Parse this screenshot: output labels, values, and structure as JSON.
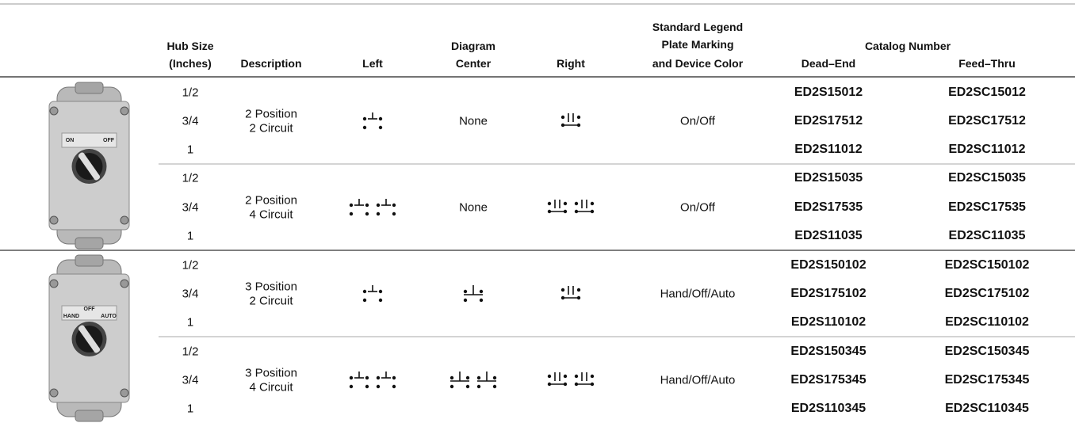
{
  "header": {
    "hub_size": [
      "Hub Size",
      "(Inches)"
    ],
    "description": "Description",
    "diagram": "Diagram",
    "left": "Left",
    "center": "Center",
    "right": "Right",
    "legend": [
      "Standard Legend",
      "Plate Marking",
      "and Device Color"
    ],
    "catalog_number": "Catalog Number",
    "dead_end": "Dead–End",
    "feed_thru": "Feed–Thru"
  },
  "products": [
    {
      "image_labels": [
        "ON",
        "OFF"
      ],
      "options": [
        {
          "hub_sizes": [
            "1/2",
            "3/4",
            "1"
          ],
          "description": [
            "2 Position",
            "2 Circuit"
          ],
          "center": "None",
          "legend": "On/Off",
          "dead_end": [
            "ED2S15012",
            "ED2S17512",
            "ED2S11012"
          ],
          "feed_thru": [
            "ED2SC15012",
            "ED2SC17512",
            "ED2SC11012"
          ]
        },
        {
          "hub_sizes": [
            "1/2",
            "3/4",
            "1"
          ],
          "description": [
            "2 Position",
            "4 Circuit"
          ],
          "center": "None",
          "legend": "On/Off",
          "dead_end": [
            "ED2S15035",
            "ED2S17535",
            "ED2S11035"
          ],
          "feed_thru": [
            "ED2SC15035",
            "ED2SC17535",
            "ED2SC11035"
          ]
        }
      ]
    },
    {
      "image_labels": [
        "HAND",
        "OFF",
        "AUTO"
      ],
      "options": [
        {
          "hub_sizes": [
            "1/2",
            "3/4",
            "1"
          ],
          "description": [
            "3 Position",
            "2 Circuit"
          ],
          "center": null,
          "legend": "Hand/Off/Auto",
          "dead_end": [
            "ED2S150102",
            "ED2S175102",
            "ED2S110102"
          ],
          "feed_thru": [
            "ED2SC150102",
            "ED2SC175102",
            "ED2SC110102"
          ]
        },
        {
          "hub_sizes": [
            "1/2",
            "3/4",
            "1"
          ],
          "description": [
            "3 Position",
            "4 Circuit"
          ],
          "center": null,
          "legend": "Hand/Off/Auto",
          "dead_end": [
            "ED2S150345",
            "ED2S175345",
            "ED2S110345"
          ],
          "feed_thru": [
            "ED2SC150345",
            "ED2SC175345",
            "ED2SC110345"
          ]
        }
      ]
    }
  ]
}
